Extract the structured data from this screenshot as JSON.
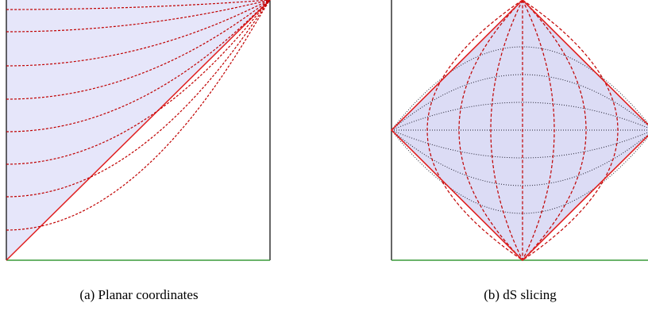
{
  "figures": [
    {
      "caption": "(a) Planar coordinates"
    },
    {
      "caption": "(b) dS slicing"
    }
  ]
}
